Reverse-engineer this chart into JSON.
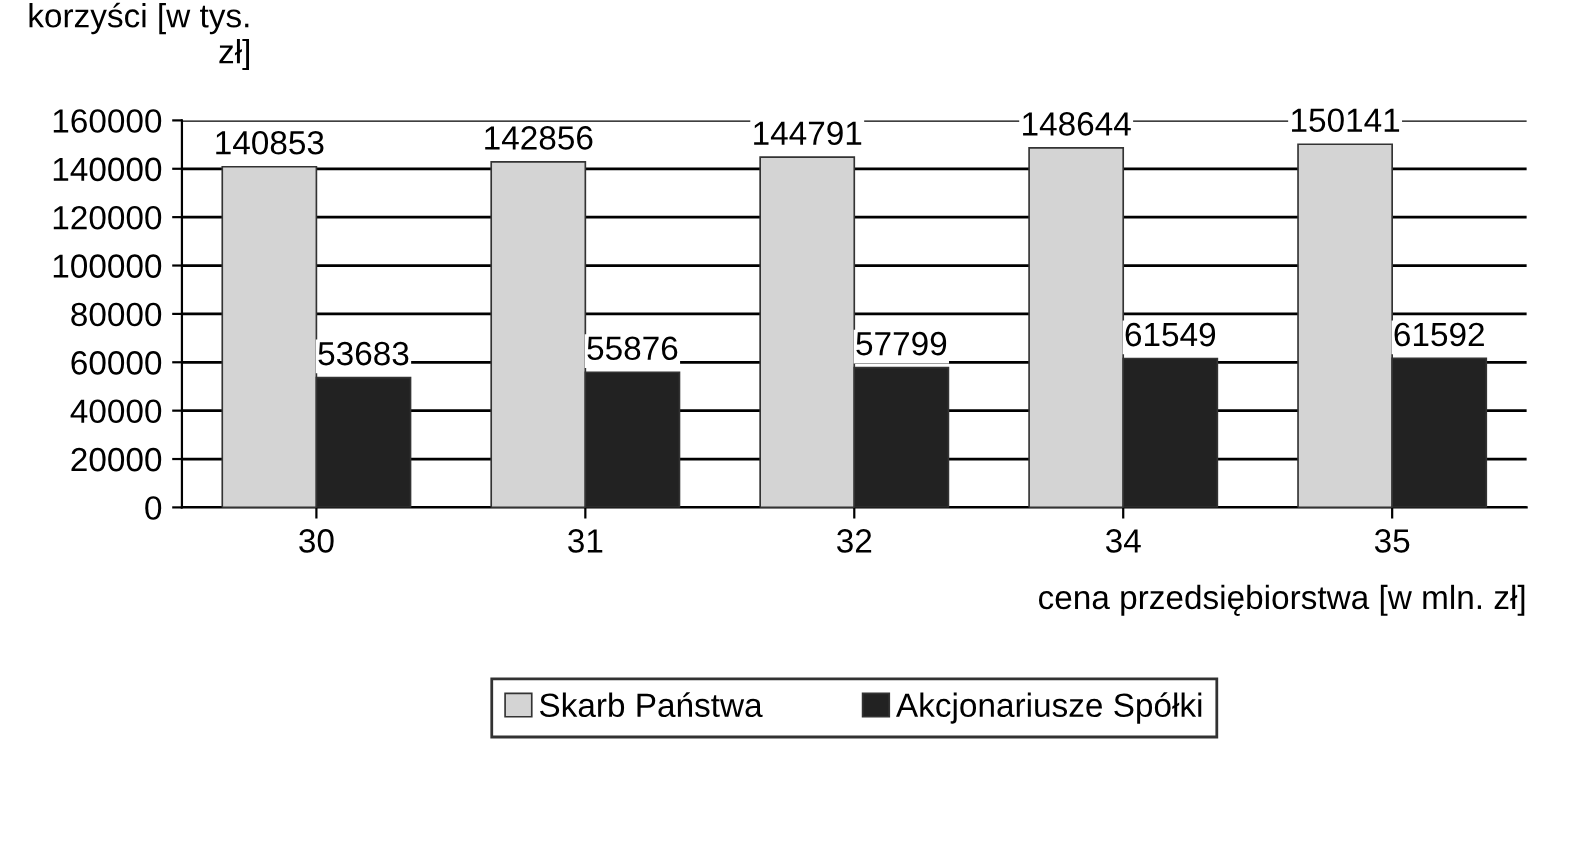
{
  "chart_data": {
    "type": "bar",
    "ylabel": "korzyści [w tys.\nzł]",
    "xlabel": "cena przedsiębiorstwa [w mln. zł]",
    "categories": [
      "30",
      "31",
      "32",
      "34",
      "35"
    ],
    "series": [
      {
        "name": "Skarb Państwa",
        "color": "#d4d4d4",
        "values": [
          140853,
          142856,
          144791,
          148644,
          150141
        ]
      },
      {
        "name": "Akcjonariusze Spółki",
        "color": "#222222",
        "values": [
          53683,
          55876,
          57799,
          61549,
          61592
        ]
      }
    ],
    "ylim": [
      0,
      160000
    ],
    "yticks": [
      0,
      20000,
      40000,
      60000,
      80000,
      100000,
      120000,
      140000,
      160000
    ],
    "grid": "y",
    "legend": "bottom",
    "data_labels": true
  }
}
